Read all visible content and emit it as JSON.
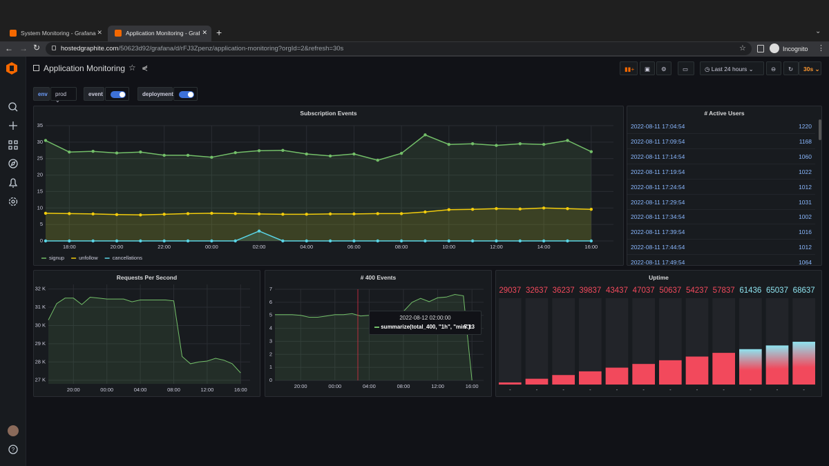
{
  "browser": {
    "tabs": [
      "System Monitoring - Grafana",
      "Application Monitoring - Grafa"
    ],
    "url_host": "hostedgraphite.com",
    "url_path": "/50623d92/grafana/d/rFJ3Zpenz/application-monitoring?orgId=2&refresh=30s",
    "profile": "Incognito"
  },
  "dashboard": {
    "title": "Application Monitoring",
    "time_range": "Last 24 hours",
    "refresh": "30s"
  },
  "variables": {
    "env_label": "env",
    "env_value": "prod",
    "toggles": [
      "event",
      "deployment"
    ]
  },
  "chart_data": [
    {
      "type": "line",
      "title": "Subscription Events",
      "categories": [
        null,
        "18:00",
        null,
        "20:00",
        null,
        "22:00",
        null,
        "00:00",
        null,
        "02:00",
        null,
        "04:00",
        null,
        "06:00",
        null,
        "08:00",
        null,
        "10:00",
        null,
        "12:00",
        null,
        "14:00",
        null,
        "16:00"
      ],
      "series": [
        {
          "name": "signup",
          "color": "#73bf69",
          "values": [
            30.5,
            27,
            27.2,
            26.7,
            27,
            26,
            26,
            25.4,
            26.8,
            27.4,
            27.5,
            26.4,
            25.8,
            26.4,
            24.5,
            26.6,
            32.2,
            29.3,
            29.5,
            29,
            29.5,
            29.3,
            30.5,
            27.1
          ]
        },
        {
          "name": "unfollow",
          "color": "#f2cc0c",
          "values": [
            8.4,
            8.3,
            8.2,
            8,
            7.9,
            8.1,
            8.3,
            8.4,
            8.3,
            8.2,
            8.1,
            8.1,
            8.2,
            8.2,
            8.3,
            8.3,
            8.8,
            9.5,
            9.6,
            9.8,
            9.7,
            10,
            9.8,
            9.6
          ]
        },
        {
          "name": "cancellations",
          "color": "#5ad4e6",
          "values": [
            0,
            0,
            0,
            0,
            0,
            0,
            0,
            0,
            0,
            3,
            0,
            0,
            0,
            0,
            0,
            0,
            0,
            0,
            0,
            0,
            0,
            0,
            0,
            0
          ]
        }
      ],
      "ylim": [
        0,
        35
      ],
      "yticks": [
        0,
        5,
        10,
        15,
        20,
        25,
        30,
        35
      ],
      "grid": true,
      "points": true,
      "legend": "bottom-left"
    },
    {
      "type": "line",
      "title": "Requests Per Second",
      "categories": [
        null,
        null,
        null,
        "20:00",
        null,
        null,
        null,
        "00:00",
        null,
        null,
        null,
        "04:00",
        null,
        null,
        null,
        "08:00",
        null,
        null,
        null,
        "12:00",
        null,
        null,
        null,
        "16:00"
      ],
      "values": [
        30300,
        31200,
        31500,
        31500,
        31150,
        31550,
        31500,
        31450,
        31450,
        31450,
        31300,
        31400,
        31400,
        31400,
        31400,
        31350,
        28300,
        27900,
        28000,
        28050,
        28200,
        28100,
        27900,
        27400
      ],
      "color": "#73bf69",
      "ylim": [
        26800,
        32250
      ],
      "yticks": [
        {
          "value": 27000,
          "label": "27 K"
        },
        {
          "value": 28000,
          "label": "28 K"
        },
        {
          "value": 29000,
          "label": "29 K"
        },
        {
          "value": 30000,
          "label": "30 K"
        },
        {
          "value": 31000,
          "label": "31 K"
        },
        {
          "value": 32000,
          "label": "32 K"
        }
      ],
      "grid": true
    },
    {
      "type": "line",
      "title": "# 400 Events",
      "categories": [
        null,
        null,
        null,
        "20:00",
        null,
        null,
        null,
        "00:00",
        null,
        null,
        null,
        "04:00",
        null,
        null,
        null,
        "08:00",
        null,
        null,
        null,
        "12:00",
        null,
        null,
        null,
        "16:00"
      ],
      "values": [
        5.05,
        5.05,
        5.05,
        5.0,
        4.85,
        4.85,
        4.95,
        5.05,
        5.05,
        5.13,
        4.95,
        5.0,
        5.05,
        5.1,
        5.2,
        5.3,
        6.0,
        6.3,
        6.05,
        6.35,
        6.4,
        6.6,
        6.5,
        0
      ],
      "color": "#73bf69",
      "ylim": [
        0,
        7
      ],
      "yticks": [
        0,
        1,
        2,
        3,
        4,
        5,
        6,
        7
      ],
      "grid": true,
      "tooltip": {
        "title": "2022-08-12 02:00:00",
        "label": "summarize(total_400, \"1h\", \"min\"):",
        "value": 5.13
      }
    },
    {
      "type": "bargauge",
      "title": "Uptime",
      "categories": [
        "-",
        "-",
        "-",
        "-",
        "-",
        "-",
        "-",
        "-",
        "-",
        "-",
        "-",
        "-"
      ],
      "values": [
        29037,
        32637,
        36237,
        39837,
        43437,
        47037,
        50637,
        54237,
        57837,
        61436,
        65037,
        68637
      ],
      "colors": [
        "#f2495c",
        "#f2495c",
        "#f2495c",
        "#f2495c",
        "#f2495c",
        "#f2495c",
        "#f2495c",
        "#f2495c",
        "#f2495c",
        "#8ee3ef",
        "#8ee3ef",
        "#8ee3ef"
      ],
      "ylim": [
        27000,
        111000
      ]
    }
  ],
  "table": {
    "title": "# Active Users",
    "rows": [
      [
        "2022-08-11 17:04:54",
        "1220"
      ],
      [
        "2022-08-11 17:09:54",
        "1168"
      ],
      [
        "2022-08-11 17:14:54",
        "1060"
      ],
      [
        "2022-08-11 17:19:54",
        "1022"
      ],
      [
        "2022-08-11 17:24:54",
        "1012"
      ],
      [
        "2022-08-11 17:29:54",
        "1031"
      ],
      [
        "2022-08-11 17:34:54",
        "1002"
      ],
      [
        "2022-08-11 17:39:54",
        "1016"
      ],
      [
        "2022-08-11 17:44:54",
        "1012"
      ],
      [
        "2022-08-11 17:49:54",
        "1064"
      ]
    ]
  }
}
